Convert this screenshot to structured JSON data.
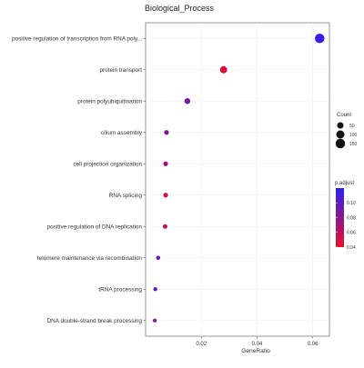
{
  "chart_data": {
    "type": "scatter",
    "title": "Biological_Process",
    "xlabel": "GeneRatio",
    "ylabel": "",
    "xlim": [
      0.0,
      0.066
    ],
    "xticks": [
      0.02,
      0.04,
      0.06
    ],
    "xtick_labels": [
      "0.02",
      "0.04",
      "0.06"
    ],
    "grid": true,
    "categories": [
      "positive regulation of transcription from RNA poly...",
      "protein transport",
      "protein polyubiquitination",
      "cilium assembly",
      "cell projection organization",
      "RNA splicing",
      "positive regulation of DNA replication",
      "telomere maintenance via recombination",
      "tRNA processing",
      "DNA double-strand break processing"
    ],
    "points": [
      {
        "term": "positive regulation of transcription from RNA poly...",
        "gene_ratio": 0.0625,
        "count": 150,
        "p_adjust": 0.115
      },
      {
        "term": "protein transport",
        "gene_ratio": 0.028,
        "count": 70,
        "p_adjust": 0.048
      },
      {
        "term": "protein polyubiquitination",
        "gene_ratio": 0.015,
        "count": 37,
        "p_adjust": 0.09
      },
      {
        "term": "cilium assembly",
        "gene_ratio": 0.0075,
        "count": 19,
        "p_adjust": 0.085
      },
      {
        "term": "cell projection organization",
        "gene_ratio": 0.0072,
        "count": 18,
        "p_adjust": 0.075
      },
      {
        "term": "RNA splicing",
        "gene_ratio": 0.0072,
        "count": 18,
        "p_adjust": 0.05
      },
      {
        "term": "positive regulation of DNA replication",
        "gene_ratio": 0.007,
        "count": 17,
        "p_adjust": 0.06
      },
      {
        "term": "telomere maintenance via recombination",
        "gene_ratio": 0.0045,
        "count": 11,
        "p_adjust": 0.092
      },
      {
        "term": "tRNA processing",
        "gene_ratio": 0.0035,
        "count": 9,
        "p_adjust": 0.098
      },
      {
        "term": "DNA double-strand break processing",
        "gene_ratio": 0.0033,
        "count": 8,
        "p_adjust": 0.088
      }
    ],
    "legend": {
      "placement": "right",
      "size": {
        "title": "Count",
        "entries": [
          {
            "label": "50",
            "value": 50
          },
          {
            "label": "100",
            "value": 100
          },
          {
            "label": "150",
            "value": 150
          }
        ]
      },
      "color": {
        "title": "p.adjust",
        "range": [
          0.04,
          0.12
        ],
        "ticks": [
          {
            "label": "0.10",
            "value": 0.1
          },
          {
            "label": "0.08",
            "value": 0.08
          },
          {
            "label": "0.06",
            "value": 0.06
          },
          {
            "label": "0.04",
            "value": 0.04
          }
        ],
        "low_color": "#e8102a",
        "high_color": "#2b22ee"
      }
    }
  }
}
